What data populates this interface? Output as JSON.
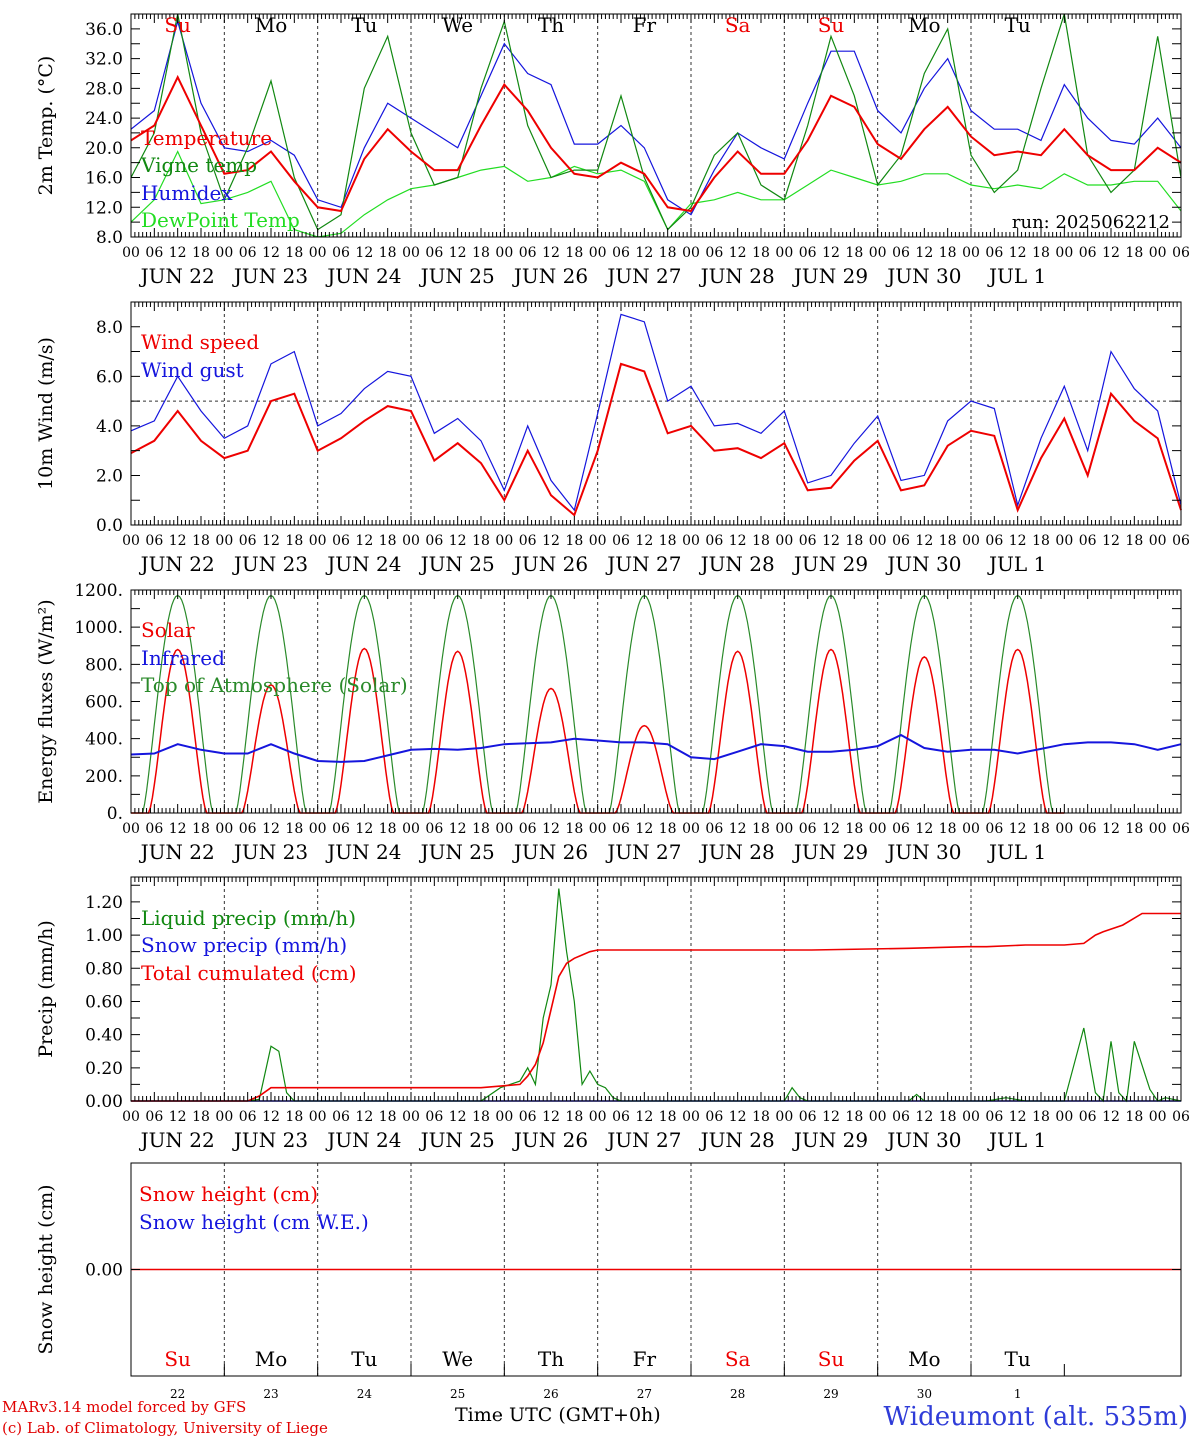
{
  "app": {
    "credit_line1": "MARv3.14 model forced by GFS",
    "credit_line2": "(c) Lab. of Climatology, University of Liege",
    "station": "Wideumont (alt. 535m)",
    "x_axis_title": "Time UTC (GMT+0h)",
    "run_label": "run: 2025062212"
  },
  "colors": {
    "red": "#ee0000",
    "green": "#118811",
    "blue": "#1515dd",
    "lightgreen": "#22dd22",
    "darkgreen": "#2a8a2a"
  },
  "hour_ticks": [
    "00",
    "06",
    "12",
    "18"
  ],
  "days": [
    {
      "date": "JUN 22",
      "abbr": "Su",
      "num": "22",
      "weekend": true
    },
    {
      "date": "JUN 23",
      "abbr": "Mo",
      "num": "23",
      "weekend": false
    },
    {
      "date": "JUN 24",
      "abbr": "Tu",
      "num": "24",
      "weekend": false
    },
    {
      "date": "JUN 25",
      "abbr": "We",
      "num": "25",
      "weekend": false
    },
    {
      "date": "JUN 26",
      "abbr": "Th",
      "num": "26",
      "weekend": false
    },
    {
      "date": "JUN 27",
      "abbr": "Fr",
      "num": "27",
      "weekend": false
    },
    {
      "date": "JUN 28",
      "abbr": "Sa",
      "num": "28",
      "weekend": true
    },
    {
      "date": "JUN 29",
      "abbr": "Su",
      "num": "29",
      "weekend": true
    },
    {
      "date": "JUN 30",
      "abbr": "Mo",
      "num": "30",
      "weekend": false
    },
    {
      "date": "JUL  1",
      "abbr": "Tu",
      "num": "1",
      "weekend": false
    }
  ],
  "chart_data": [
    {
      "type": "line",
      "ylabel": "2m Temp. (°C)",
      "ylim": [
        8,
        38
      ],
      "yticks": [
        8,
        12,
        16,
        20,
        24,
        28,
        32,
        36
      ],
      "ytick_labels": [
        "8.0",
        "12.0",
        "16.0",
        "20.0",
        "24.0",
        "28.0",
        "32.0",
        "36.0"
      ],
      "x_unit": "hours since JUN 22 00 UTC",
      "x": [
        0,
        6,
        12,
        18,
        24,
        30,
        36,
        42,
        48,
        54,
        60,
        66,
        72,
        78,
        84,
        90,
        96,
        102,
        108,
        114,
        120,
        126,
        132,
        138,
        144,
        150,
        156,
        162,
        168,
        174,
        180,
        186,
        192,
        198,
        204,
        210,
        216,
        222,
        228,
        234,
        240,
        246,
        252,
        258,
        264,
        270
      ],
      "series": [
        {
          "name": "Temperature",
          "color": "red",
          "values": [
            21,
            23,
            29.5,
            23,
            16.5,
            17,
            19.5,
            15.5,
            12,
            11.5,
            18.5,
            22.5,
            19.5,
            17,
            17,
            23,
            28.5,
            25,
            20,
            16.5,
            16,
            18,
            16.5,
            12,
            11.5,
            16,
            19.5,
            16.5,
            16.5,
            21,
            27,
            25.5,
            20.5,
            18.5,
            22.5,
            25.5,
            21.5,
            19,
            19.5,
            19,
            22.5,
            19,
            17,
            17,
            20,
            18
          ]
        },
        {
          "name": "Vigne temp",
          "color": "green",
          "values": [
            16,
            22,
            38,
            22,
            13,
            20,
            29,
            16,
            9,
            11,
            28,
            35,
            22,
            15,
            16,
            28,
            37,
            23,
            16,
            17,
            17,
            27,
            16,
            9,
            12,
            19,
            22,
            15,
            13,
            23,
            35,
            27,
            15,
            19,
            30,
            36,
            19,
            14,
            17,
            28,
            38,
            19,
            14,
            17,
            35,
            16
          ]
        },
        {
          "name": "Humidex",
          "color": "blue",
          "values": [
            22.5,
            25,
            37,
            26,
            20,
            19.5,
            21,
            19,
            13,
            12,
            20,
            26,
            24,
            22,
            20,
            27,
            34,
            30,
            28.5,
            20.5,
            20.5,
            23,
            20,
            13,
            11,
            17,
            22,
            20,
            18.5,
            26,
            33,
            33,
            25,
            22,
            28,
            32,
            25,
            22.5,
            22.5,
            21,
            28.5,
            24,
            21,
            20.5,
            24,
            20
          ]
        },
        {
          "name": "DewPoint Temp",
          "color": "lightgreen",
          "values": [
            10,
            13,
            19.5,
            12.5,
            13,
            14,
            15.5,
            9,
            8,
            8.5,
            11,
            13,
            14.5,
            15,
            16,
            17,
            17.5,
            15.5,
            16,
            17.5,
            16.5,
            17,
            15.5,
            9,
            12.5,
            13,
            14,
            13,
            13,
            15,
            17,
            16,
            15,
            15.5,
            16.5,
            16.5,
            15,
            14.5,
            15,
            14.5,
            16.5,
            15,
            15,
            15.5,
            15.5,
            11.5
          ]
        }
      ]
    },
    {
      "type": "line",
      "ylabel": "10m Wind (m/s)",
      "ylim": [
        0,
        9
      ],
      "yticks": [
        0,
        2,
        4,
        6,
        8
      ],
      "ytick_labels": [
        "0.0",
        "2.0",
        "4.0",
        "6.0",
        "8.0"
      ],
      "ref_line": 5,
      "x_unit": "hours since JUN 22 00 UTC",
      "x": [
        0,
        6,
        12,
        18,
        24,
        30,
        36,
        42,
        48,
        54,
        60,
        66,
        72,
        78,
        84,
        90,
        96,
        102,
        108,
        114,
        120,
        126,
        132,
        138,
        144,
        150,
        156,
        162,
        168,
        174,
        180,
        186,
        192,
        198,
        204,
        210,
        216,
        222,
        228,
        234,
        240,
        246,
        252,
        258,
        264,
        270
      ],
      "series": [
        {
          "name": "Wind speed",
          "color": "red",
          "values": [
            2.9,
            3.4,
            4.6,
            3.4,
            2.7,
            3.0,
            5.0,
            5.3,
            3.0,
            3.5,
            4.2,
            4.8,
            4.6,
            2.6,
            3.3,
            2.5,
            1.0,
            3.0,
            1.2,
            0.4,
            3.0,
            6.5,
            6.2,
            3.7,
            4.0,
            3.0,
            3.1,
            2.7,
            3.3,
            1.4,
            1.5,
            2.6,
            3.4,
            1.4,
            1.6,
            3.2,
            3.8,
            3.6,
            0.6,
            2.7,
            4.3,
            2.0,
            5.3,
            4.2,
            3.5,
            0.6
          ]
        },
        {
          "name": "Wind gust",
          "color": "blue",
          "values": [
            3.8,
            4.2,
            6.0,
            4.6,
            3.5,
            4.0,
            6.5,
            7.0,
            4.0,
            4.5,
            5.5,
            6.2,
            6.0,
            3.7,
            4.3,
            3.4,
            1.4,
            4.0,
            1.8,
            0.6,
            4.5,
            8.5,
            8.2,
            5.0,
            5.6,
            4.0,
            4.1,
            3.7,
            4.6,
            1.7,
            2.0,
            3.3,
            4.4,
            1.8,
            2.0,
            4.2,
            5.0,
            4.7,
            0.8,
            3.5,
            5.6,
            3.0,
            7.0,
            5.5,
            4.6,
            0.8
          ]
        }
      ]
    },
    {
      "type": "line",
      "ylabel": "Energy fluxes (W/m²)",
      "ylim": [
        0,
        1200
      ],
      "yticks": [
        0,
        200,
        400,
        600,
        800,
        1000,
        1200
      ],
      "ytick_labels": [
        "0.",
        "200.",
        "400.",
        "600.",
        "800.",
        "1000.",
        "1200."
      ],
      "x_unit": "hours since JUN 22 00 UTC",
      "solar_day_peaks": [
        880,
        690,
        885,
        870,
        670,
        470,
        870,
        880,
        840,
        880
      ],
      "toa_peak": 1170,
      "infrared": {
        "x": [
          0,
          6,
          12,
          18,
          24,
          30,
          36,
          42,
          48,
          54,
          60,
          66,
          72,
          78,
          84,
          90,
          96,
          102,
          108,
          114,
          120,
          126,
          132,
          138,
          144,
          150,
          156,
          162,
          168,
          174,
          180,
          186,
          192,
          198,
          204,
          210,
          216,
          222,
          228,
          234,
          240,
          246,
          252,
          258,
          264,
          270
        ],
        "values": [
          315,
          320,
          370,
          340,
          320,
          320,
          370,
          320,
          280,
          275,
          280,
          310,
          340,
          345,
          340,
          350,
          370,
          375,
          380,
          400,
          390,
          380,
          380,
          370,
          300,
          290,
          330,
          370,
          360,
          330,
          330,
          340,
          360,
          420,
          350,
          330,
          340,
          340,
          320,
          345,
          370,
          380,
          380,
          370,
          340,
          370
        ]
      },
      "series": [
        {
          "name": "Solar",
          "color": "red"
        },
        {
          "name": "Infrared",
          "color": "blue"
        },
        {
          "name": "Top of Atmosphere (Solar)",
          "color": "darkgreen"
        }
      ]
    },
    {
      "type": "line",
      "ylabel": "Precip (mm/h)",
      "ylim": [
        0,
        1.35
      ],
      "yticks": [
        0,
        0.2,
        0.4,
        0.6,
        0.8,
        1.0,
        1.2
      ],
      "ytick_labels": [
        "0.00",
        "0.20",
        "0.40",
        "0.60",
        "0.80",
        "1.00",
        "1.20"
      ],
      "x_unit": "hours since JUN 22 00 UTC",
      "liquid": {
        "x": [
          0,
          30,
          33,
          36,
          38,
          40,
          42,
          44,
          90,
          95,
          100,
          102,
          104,
          106,
          108,
          110,
          112,
          114,
          116,
          118,
          120,
          122,
          124,
          126,
          128,
          132,
          135,
          140,
          150,
          168,
          170,
          172,
          174,
          200,
          202,
          204,
          220,
          225,
          230,
          240,
          245,
          248,
          250,
          252,
          254,
          256,
          258,
          262,
          264,
          266,
          270
        ],
        "values": [
          0,
          0,
          0.01,
          0.33,
          0.3,
          0.05,
          0,
          0,
          0,
          0.08,
          0.12,
          0.2,
          0.1,
          0.5,
          0.7,
          1.28,
          0.9,
          0.6,
          0.1,
          0.18,
          0.1,
          0.08,
          0.02,
          0,
          0,
          0,
          0,
          0,
          0,
          0,
          0.08,
          0.02,
          0,
          0,
          0.04,
          0,
          0,
          0.02,
          0,
          0,
          0.44,
          0.05,
          0,
          0.36,
          0.05,
          0,
          0.36,
          0.07,
          0,
          0.02,
          0
        ]
      },
      "cumulated": {
        "x": [
          0,
          30,
          33,
          36,
          90,
          95,
          100,
          102,
          104,
          106,
          108,
          110,
          112,
          114,
          116,
          118,
          120,
          130,
          160,
          175,
          200,
          215,
          220,
          230,
          240,
          245,
          248,
          250,
          255,
          260,
          270
        ],
        "values": [
          0,
          0,
          0.03,
          0.08,
          0.08,
          0.09,
          0.1,
          0.15,
          0.22,
          0.35,
          0.55,
          0.75,
          0.83,
          0.86,
          0.88,
          0.9,
          0.91,
          0.91,
          0.91,
          0.91,
          0.92,
          0.93,
          0.93,
          0.94,
          0.94,
          0.95,
          1.0,
          1.02,
          1.06,
          1.13,
          1.13
        ]
      },
      "series": [
        {
          "name": "Liquid precip (mm/h)",
          "color": "green"
        },
        {
          "name": "Snow precip (mm/h)",
          "color": "blue"
        },
        {
          "name": "Total cumulated (cm)",
          "color": "red"
        }
      ]
    },
    {
      "type": "line",
      "ylabel": "Snow height (cm)",
      "yticks": [
        0
      ],
      "ytick_labels": [
        "0.00"
      ],
      "x_unit": "hours since JUN 22 00 UTC",
      "series": [
        {
          "name": "Snow height (cm)",
          "color": "red",
          "values": [
            0
          ]
        },
        {
          "name": "Snow height (cm W.E.)",
          "color": "blue",
          "values": [
            0
          ]
        }
      ]
    }
  ]
}
